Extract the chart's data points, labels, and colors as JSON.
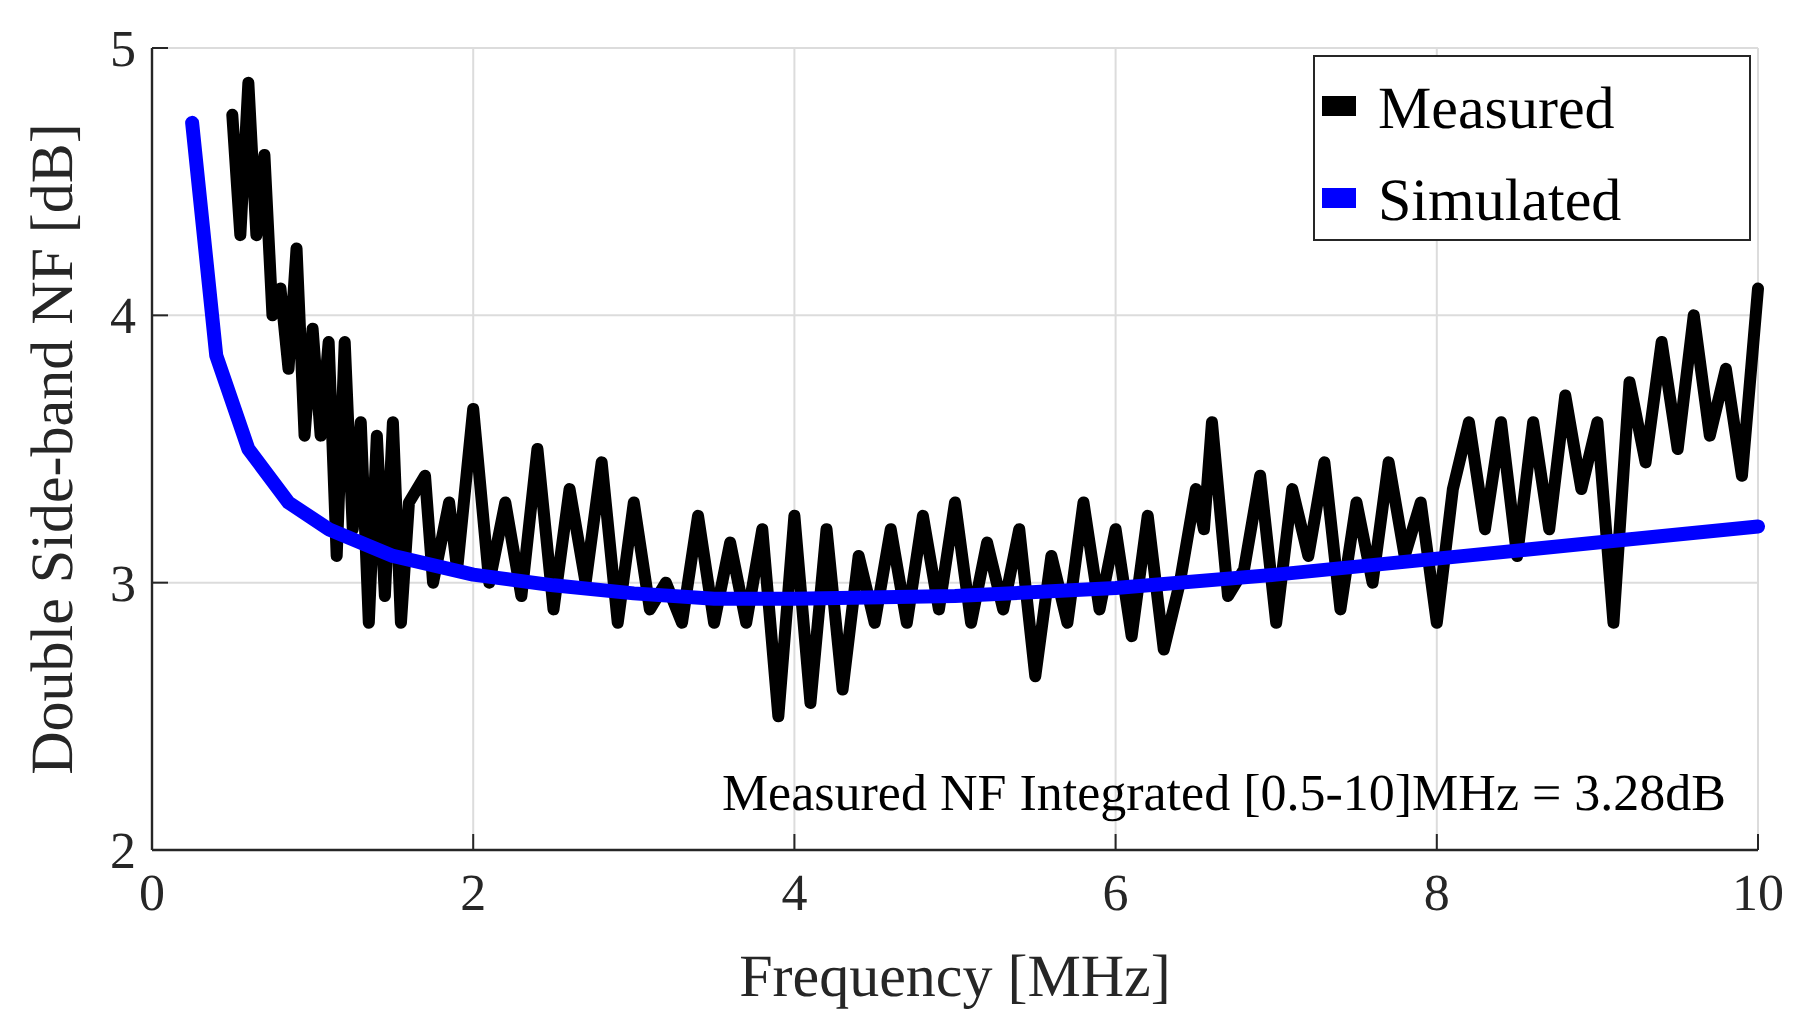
{
  "chart_data": {
    "type": "line",
    "xlabel": "Frequency [MHz]",
    "ylabel": "Double Side-band NF [dB]",
    "xlim": [
      0,
      10
    ],
    "ylim": [
      2,
      5
    ],
    "xticks": [
      0,
      2,
      4,
      6,
      8,
      10
    ],
    "yticks": [
      2,
      3,
      4,
      5
    ],
    "grid": true,
    "legend": "top right",
    "line_style": "solid",
    "marker": "none",
    "annotations": [
      "Measured NF Integrated [0.5-10]MHz = 3.28dB"
    ],
    "series": [
      {
        "name": "Measured",
        "color": "#000000",
        "x": [
          0.5,
          0.55,
          0.6,
          0.65,
          0.7,
          0.75,
          0.8,
          0.85,
          0.9,
          0.95,
          1.0,
          1.05,
          1.1,
          1.15,
          1.2,
          1.25,
          1.3,
          1.35,
          1.4,
          1.45,
          1.5,
          1.55,
          1.6,
          1.7,
          1.75,
          1.85,
          1.9,
          2.0,
          2.1,
          2.2,
          2.3,
          2.4,
          2.5,
          2.6,
          2.7,
          2.8,
          2.9,
          3.0,
          3.1,
          3.2,
          3.3,
          3.4,
          3.5,
          3.6,
          3.7,
          3.8,
          3.9,
          4.0,
          4.1,
          4.2,
          4.3,
          4.4,
          4.5,
          4.6,
          4.7,
          4.8,
          4.9,
          5.0,
          5.1,
          5.2,
          5.3,
          5.4,
          5.5,
          5.6,
          5.7,
          5.8,
          5.9,
          6.0,
          6.1,
          6.2,
          6.3,
          6.4,
          6.5,
          6.55,
          6.6,
          6.7,
          6.8,
          6.9,
          7.0,
          7.1,
          7.2,
          7.3,
          7.4,
          7.5,
          7.6,
          7.7,
          7.8,
          7.9,
          8.0,
          8.1,
          8.2,
          8.3,
          8.4,
          8.5,
          8.6,
          8.7,
          8.8,
          8.9,
          9.0,
          9.1,
          9.2,
          9.3,
          9.4,
          9.5,
          9.6,
          9.7,
          9.8,
          9.9,
          10.0
        ],
        "values": [
          4.75,
          4.3,
          4.87,
          4.3,
          4.6,
          4.0,
          4.1,
          3.8,
          4.25,
          3.55,
          3.95,
          3.55,
          3.9,
          3.1,
          3.9,
          3.2,
          3.6,
          2.85,
          3.55,
          2.95,
          3.6,
          2.85,
          3.3,
          3.4,
          3.0,
          3.3,
          3.05,
          3.65,
          3.0,
          3.3,
          2.95,
          3.5,
          2.9,
          3.35,
          3.0,
          3.45,
          2.85,
          3.3,
          2.9,
          3.0,
          2.85,
          3.25,
          2.85,
          3.15,
          2.85,
          3.2,
          2.5,
          3.25,
          2.55,
          3.2,
          2.6,
          3.1,
          2.85,
          3.2,
          2.85,
          3.25,
          2.9,
          3.3,
          2.85,
          3.15,
          2.9,
          3.2,
          2.65,
          3.1,
          2.85,
          3.3,
          2.9,
          3.2,
          2.8,
          3.25,
          2.75,
          3.0,
          3.35,
          3.2,
          3.6,
          2.95,
          3.05,
          3.4,
          2.85,
          3.35,
          3.1,
          3.45,
          2.9,
          3.3,
          3.0,
          3.45,
          3.1,
          3.3,
          2.85,
          3.35,
          3.6,
          3.2,
          3.6,
          3.1,
          3.6,
          3.2,
          3.7,
          3.35,
          3.6,
          2.85,
          3.75,
          3.45,
          3.9,
          3.5,
          4.0,
          3.55,
          3.8,
          3.4,
          4.1
        ]
      },
      {
        "name": "Simulated",
        "color": "#0000ff",
        "x": [
          0.25,
          0.4,
          0.6,
          0.85,
          1.1,
          1.5,
          2,
          2.5,
          3,
          3.5,
          4,
          5,
          6,
          7,
          8,
          9,
          10
        ],
        "values": [
          4.72,
          3.85,
          3.5,
          3.3,
          3.2,
          3.1,
          3.03,
          2.99,
          2.96,
          2.94,
          2.94,
          2.95,
          2.98,
          3.03,
          3.09,
          3.15,
          3.21
        ]
      }
    ]
  }
}
